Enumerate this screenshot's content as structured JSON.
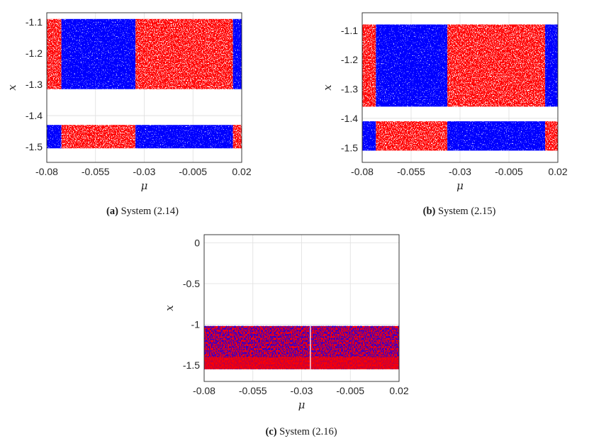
{
  "chart_data": [
    {
      "type": "scatter",
      "subtype": "bifurcation-diagram",
      "caption_label": "(a)",
      "caption_text": " System (2.14)",
      "xlabel": "μ",
      "ylabel": "x",
      "xlim": [
        -0.08,
        0.02
      ],
      "ylim": [
        -1.55,
        -1.07
      ],
      "grid": true,
      "x_ticks": [
        -0.08,
        -0.055,
        -0.03,
        -0.005,
        0.02
      ],
      "x_tick_labels": [
        "-0.08",
        "-0.055",
        "-0.03",
        "-0.005",
        "0.02"
      ],
      "y_ticks": [
        -1.1,
        -1.2,
        -1.3,
        -1.4,
        -1.5
      ],
      "y_tick_labels": [
        "-1.1",
        "-1.2",
        "-1.3",
        "-1.4",
        "-1.5"
      ],
      "series_colors": {
        "red": "#ff0000",
        "blue": "#0000ff"
      },
      "bands": [
        {
          "y_range": [
            -1.315,
            -1.09
          ],
          "segments": [
            {
              "x_range": [
                -0.08,
                -0.0725
              ],
              "color": "red"
            },
            {
              "x_range": [
                -0.0725,
                -0.0345
              ],
              "color": "blue"
            },
            {
              "x_range": [
                -0.0345,
                0.0155
              ],
              "color": "red"
            },
            {
              "x_range": [
                0.0155,
                0.02
              ],
              "color": "blue"
            }
          ]
        },
        {
          "y_range": [
            -1.505,
            -1.43
          ],
          "segments": [
            {
              "x_range": [
                -0.08,
                -0.0725
              ],
              "color": "blue"
            },
            {
              "x_range": [
                -0.0725,
                -0.0345
              ],
              "color": "red"
            },
            {
              "x_range": [
                -0.0345,
                0.0155
              ],
              "color": "blue"
            },
            {
              "x_range": [
                0.0155,
                0.02
              ],
              "color": "red"
            }
          ]
        }
      ]
    },
    {
      "type": "scatter",
      "subtype": "bifurcation-diagram",
      "caption_label": "(b)",
      "caption_text": " System (2.15)",
      "xlabel": "μ",
      "ylabel": "x",
      "xlim": [
        -0.08,
        0.02
      ],
      "ylim": [
        -1.55,
        -1.04
      ],
      "grid": true,
      "x_ticks": [
        -0.08,
        -0.055,
        -0.03,
        -0.005,
        0.02
      ],
      "x_tick_labels": [
        "-0.08",
        "-0.055",
        "-0.03",
        "-0.005",
        "0.02"
      ],
      "y_ticks": [
        -1.1,
        -1.2,
        -1.3,
        -1.4,
        -1.5
      ],
      "y_tick_labels": [
        "-1.1",
        "-1.2",
        "-1.3",
        "-1.4",
        "-1.5"
      ],
      "series_colors": {
        "red": "#ff0000",
        "blue": "#0000ff"
      },
      "bands": [
        {
          "y_range": [
            -1.36,
            -1.08
          ],
          "segments": [
            {
              "x_range": [
                -0.08,
                -0.073
              ],
              "color": "red"
            },
            {
              "x_range": [
                -0.073,
                -0.0365
              ],
              "color": "blue"
            },
            {
              "x_range": [
                -0.0365,
                0.0135
              ],
              "color": "red"
            },
            {
              "x_range": [
                0.0135,
                0.02
              ],
              "color": "blue"
            }
          ]
        },
        {
          "y_range": [
            -1.51,
            -1.41
          ],
          "segments": [
            {
              "x_range": [
                -0.08,
                -0.073
              ],
              "color": "blue"
            },
            {
              "x_range": [
                -0.073,
                -0.0365
              ],
              "color": "red"
            },
            {
              "x_range": [
                -0.0365,
                0.0135
              ],
              "color": "blue"
            },
            {
              "x_range": [
                0.0135,
                0.02
              ],
              "color": "red"
            }
          ]
        }
      ]
    },
    {
      "type": "scatter",
      "subtype": "bifurcation-diagram",
      "caption_label": "(c)",
      "caption_text": " System (2.16)",
      "xlabel": "μ",
      "ylabel": "x",
      "xlim": [
        -0.08,
        0.02
      ],
      "ylim": [
        -1.7,
        0.1
      ],
      "grid": true,
      "x_ticks": [
        -0.08,
        -0.055,
        -0.03,
        -0.005,
        0.02
      ],
      "x_tick_labels": [
        "-0.08",
        "-0.055",
        "-0.03",
        "-0.005",
        "0.02"
      ],
      "y_ticks": [
        0,
        -0.5,
        -1,
        -1.5
      ],
      "y_tick_labels": [
        "0",
        "-0.5",
        "-1",
        "-1.5"
      ],
      "series_colors": {
        "red": "#ff0000",
        "blue": "#0000ff"
      },
      "bands": [
        {
          "y_range": [
            -1.55,
            -1.02
          ],
          "segments": [
            {
              "x_range": [
                -0.08,
                0.02
              ],
              "color": "mixed"
            }
          ]
        }
      ]
    }
  ]
}
